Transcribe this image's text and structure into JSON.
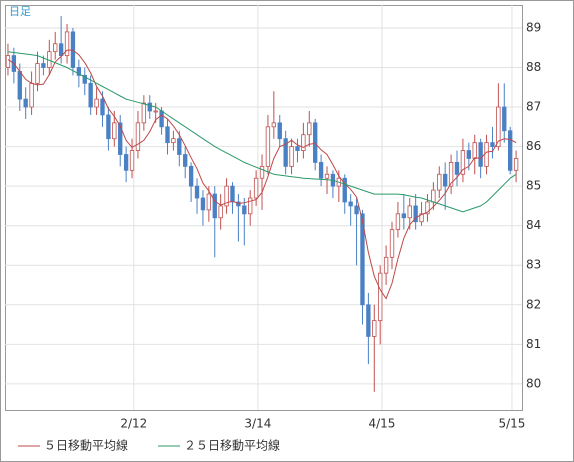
{
  "chart_data": {
    "type": "candlestick",
    "label": "日足",
    "open": [
      88.0,
      88.3,
      87.9,
      87.2,
      87.0,
      87.6,
      88.1,
      88.0,
      88.4,
      88.6,
      88.3,
      88.9,
      88.0,
      87.8,
      87.6,
      87.0,
      87.2,
      86.8,
      86.2,
      86.6,
      85.8,
      85.4,
      85.9,
      86.6,
      87.1,
      86.9,
      86.9,
      86.5,
      86.1,
      86.2,
      85.8,
      85.5,
      85.0,
      84.7,
      84.4,
      84.8,
      84.2,
      84.5,
      85.0,
      84.6,
      84.5,
      84.3,
      84.7,
      85.2,
      85.5,
      86.5,
      86.6,
      86.2,
      85.5,
      86.0,
      85.9,
      86.3,
      86.6,
      85.6,
      85.2,
      85.3,
      85.0,
      85.2,
      84.6,
      84.5,
      84.3,
      82.0,
      81.2,
      81.6,
      82.8,
      83.2,
      83.9,
      84.3,
      84.2,
      84.5,
      84.1,
      84.3,
      84.6,
      84.9,
      85.3,
      85.0,
      85.6,
      85.3,
      85.9,
      85.7,
      86.1,
      85.5,
      86.1,
      86.0,
      87.0,
      86.4,
      85.4
    ],
    "high": [
      88.6,
      88.5,
      88.1,
      87.5,
      87.9,
      88.4,
      88.3,
      88.7,
      88.9,
      89.3,
      89.1,
      89.0,
      88.2,
      88.0,
      87.8,
      87.5,
      87.4,
      87.0,
      86.9,
      86.8,
      86.0,
      86.2,
      86.9,
      87.3,
      87.3,
      87.1,
      87.0,
      86.7,
      86.4,
      86.4,
      86.0,
      85.6,
      85.2,
      84.9,
      85.0,
      85.0,
      84.8,
      85.2,
      85.1,
      84.8,
      84.7,
      84.9,
      85.4,
      85.8,
      86.8,
      87.4,
      86.8,
      86.4,
      86.2,
      86.2,
      86.6,
      86.9,
      86.7,
      85.8,
      85.5,
      85.4,
      85.4,
      85.3,
      84.8,
      84.7,
      84.4,
      82.3,
      82.0,
      83.0,
      83.5,
      84.1,
      84.6,
      84.8,
      84.7,
      84.8,
      84.6,
      84.8,
      85.1,
      85.5,
      85.6,
      85.8,
      85.9,
      86.2,
      86.1,
      86.3,
      86.2,
      86.3,
      86.5,
      87.6,
      87.6,
      86.5,
      85.9
    ],
    "low": [
      87.8,
      87.6,
      86.9,
      86.7,
      86.8,
      87.4,
      87.8,
      87.8,
      88.2,
      88.1,
      88.1,
      87.8,
      87.5,
      87.3,
      86.8,
      86.8,
      86.5,
      85.9,
      86.0,
      85.5,
      85.1,
      85.2,
      85.7,
      86.4,
      86.7,
      86.6,
      86.3,
      85.8,
      85.9,
      85.5,
      85.2,
      84.6,
      84.3,
      84.0,
      84.1,
      83.2,
      83.9,
      84.3,
      84.3,
      83.6,
      83.5,
      84.0,
      84.5,
      84.4,
      85.3,
      86.2,
      86.0,
      85.3,
      85.3,
      85.6,
      85.7,
      86.0,
      85.4,
      85.0,
      84.8,
      84.7,
      84.6,
      84.3,
      84.0,
      83.0,
      81.5,
      80.5,
      79.8,
      81.0,
      82.5,
      82.9,
      83.7,
      83.9,
      83.9,
      83.9,
      84.0,
      84.1,
      84.4,
      84.7,
      84.4,
      84.8,
      85.0,
      85.1,
      85.4,
      85.3,
      85.2,
      85.3,
      85.7,
      85.9,
      86.1,
      85.3,
      85.1
    ],
    "close": [
      88.3,
      87.9,
      87.2,
      87.0,
      87.6,
      88.1,
      88.0,
      88.4,
      88.6,
      88.3,
      88.9,
      88.0,
      87.8,
      87.6,
      87.0,
      87.2,
      86.8,
      86.2,
      86.6,
      85.8,
      85.4,
      85.9,
      86.6,
      87.1,
      86.9,
      86.9,
      86.5,
      86.1,
      86.2,
      85.8,
      85.5,
      85.0,
      84.7,
      84.4,
      84.8,
      84.2,
      84.5,
      85.0,
      84.6,
      84.5,
      84.3,
      84.7,
      85.2,
      85.5,
      86.5,
      86.6,
      86.2,
      85.5,
      86.0,
      85.9,
      86.3,
      86.6,
      85.6,
      85.2,
      85.3,
      85.0,
      85.2,
      84.6,
      84.5,
      84.3,
      82.0,
      81.2,
      81.6,
      82.8,
      83.2,
      83.9,
      84.3,
      84.2,
      84.5,
      84.1,
      84.3,
      84.6,
      84.9,
      85.3,
      85.0,
      85.6,
      85.3,
      85.9,
      85.7,
      86.1,
      85.5,
      86.1,
      86.0,
      87.0,
      86.4,
      85.4,
      85.7
    ],
    "up_color": "#c05050",
    "down_color": "#4a80c4",
    "series": [
      {
        "name": "５日移動平均線",
        "color": "#c04848",
        "values": [
          88.2,
          88.1,
          87.9,
          87.7,
          87.6,
          87.56,
          87.58,
          87.82,
          88.14,
          88.28,
          88.44,
          88.44,
          88.32,
          88.12,
          87.86,
          87.52,
          87.28,
          86.96,
          86.76,
          86.52,
          86.16,
          85.98,
          86.06,
          86.16,
          86.38,
          86.68,
          86.8,
          86.7,
          86.52,
          86.3,
          86.02,
          85.72,
          85.44,
          85.08,
          84.88,
          84.62,
          84.52,
          84.58,
          84.62,
          84.56,
          84.58,
          84.62,
          84.66,
          84.84,
          85.24,
          85.7,
          86.0,
          86.06,
          86.16,
          86.04,
          85.98,
          86.06,
          86.08,
          85.92,
          85.8,
          85.54,
          85.26,
          85.06,
          84.92,
          84.72,
          84.12,
          83.32,
          82.72,
          82.38,
          82.16,
          82.54,
          83.16,
          83.68,
          84.02,
          84.2,
          84.28,
          84.34,
          84.48,
          84.64,
          84.82,
          85.08,
          85.22,
          85.42,
          85.5,
          85.72,
          85.7,
          85.86,
          85.88,
          86.14,
          86.2,
          86.18,
          86.1
        ]
      },
      {
        "name": "２５日移動平均線",
        "color": "#2a9a6a",
        "values": [
          88.4,
          88.38,
          88.36,
          88.34,
          88.32,
          88.3,
          88.24,
          88.18,
          88.12,
          88.06,
          88.0,
          87.92,
          87.84,
          87.76,
          87.68,
          87.6,
          87.52,
          87.44,
          87.36,
          87.28,
          87.2,
          87.16,
          87.12,
          87.08,
          87.04,
          87.0,
          86.9,
          86.8,
          86.7,
          86.6,
          86.5,
          86.4,
          86.3,
          86.2,
          86.1,
          86.0,
          85.92,
          85.84,
          85.76,
          85.68,
          85.6,
          85.54,
          85.48,
          85.42,
          85.36,
          85.3,
          85.28,
          85.26,
          85.24,
          85.22,
          85.2,
          85.19,
          85.18,
          85.17,
          85.16,
          85.15,
          85.1,
          85.05,
          85.0,
          84.95,
          84.9,
          84.85,
          84.8,
          84.8,
          84.8,
          84.8,
          84.8,
          84.78,
          84.75,
          84.72,
          84.7,
          84.65,
          84.6,
          84.55,
          84.5,
          84.45,
          84.4,
          84.35,
          84.4,
          84.45,
          84.5,
          84.6,
          84.75,
          84.9,
          85.05,
          85.2,
          85.3
        ]
      }
    ],
    "xlim": [
      -0.5,
      87
    ],
    "xticks": [
      {
        "value": 21.3,
        "label": "2/12"
      },
      {
        "value": 42.3,
        "label": "3/14"
      },
      {
        "value": 63.3,
        "label": "4/15"
      },
      {
        "value": 85.3,
        "label": "5/15"
      }
    ],
    "ylim": [
      79.34,
      89.58
    ],
    "yticks": [
      80,
      81,
      82,
      83,
      84,
      85,
      86,
      87,
      88,
      89
    ],
    "grid": true
  }
}
